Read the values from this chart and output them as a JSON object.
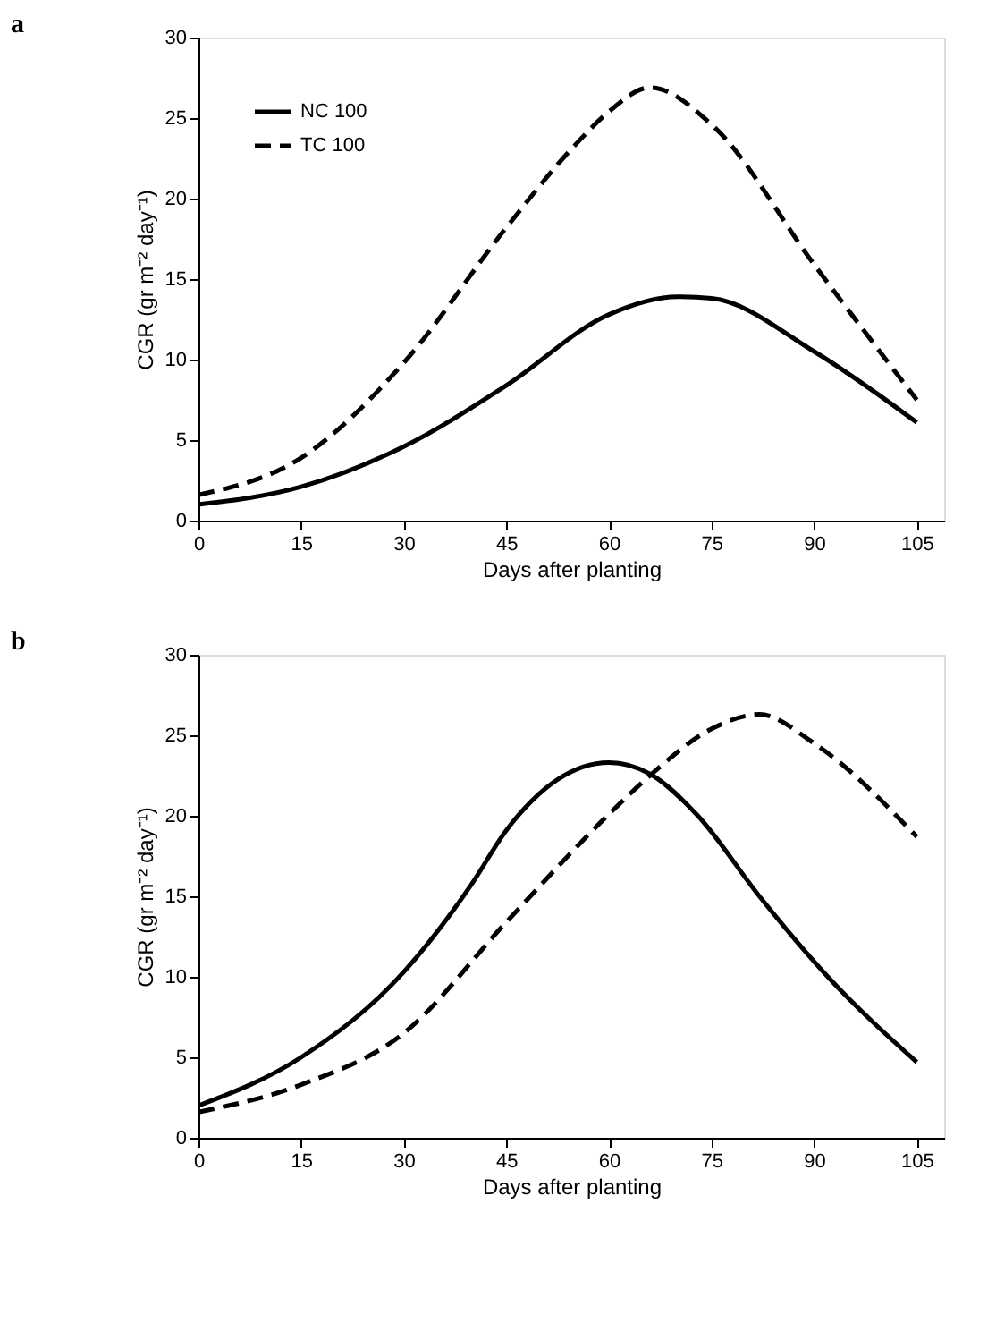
{
  "chart_data": [
    {
      "type": "line",
      "title": "a",
      "xlabel": "Days after planting",
      "ylabel": "CGR (gr m⁻² day⁻¹)",
      "xlim": [
        0,
        109
      ],
      "xticks": [
        0,
        15,
        30,
        45,
        60,
        75,
        90,
        105
      ],
      "ylim": [
        0,
        30
      ],
      "yticks": [
        0,
        5,
        10,
        15,
        20,
        25,
        30
      ],
      "grid": false,
      "legend": "top left",
      "marker": "none",
      "series": [
        {
          "name": "NC 100",
          "color": "#000000",
          "line_style": "solid",
          "x": [
            0,
            15,
            30,
            45,
            60,
            70,
            75,
            90,
            105
          ],
          "values": [
            1.0,
            2.1,
            4.6,
            8.4,
            12.8,
            13.9,
            13.8,
            10.5,
            6.1
          ]
        },
        {
          "name": "TC 100",
          "color": "#000000",
          "line_style": "dashed",
          "x": [
            0,
            15,
            30,
            45,
            55,
            60,
            66,
            75,
            90,
            105
          ],
          "values": [
            1.6,
            3.9,
            9.8,
            18.2,
            23.3,
            25.4,
            26.9,
            24.6,
            15.9,
            7.5
          ]
        }
      ]
    },
    {
      "type": "line",
      "title": "b",
      "xlabel": "Days after planting",
      "ylabel": "CGR (gr m⁻² day⁻¹)",
      "xlim": [
        0,
        109
      ],
      "xticks": [
        0,
        15,
        30,
        45,
        60,
        75,
        90,
        105
      ],
      "ylim": [
        0,
        30
      ],
      "yticks": [
        0,
        5,
        10,
        15,
        20,
        25,
        30
      ],
      "grid": false,
      "legend": "top left",
      "marker": "none",
      "series": [
        {
          "name": "NC 100",
          "color": "#000000",
          "line_style": "solid",
          "x": [
            0,
            15,
            30,
            40,
            45,
            60,
            66,
            73,
            82,
            92,
            105
          ],
          "values": [
            2.0,
            5.0,
            10.3,
            15.8,
            19.1,
            23.3,
            22.6,
            20.0,
            15.0,
            10.0,
            4.7
          ]
        },
        {
          "name": "TC 100",
          "color": "#000000",
          "line_style": "dashed",
          "x": [
            0,
            15,
            30,
            45,
            60,
            66,
            75,
            82,
            90,
            105
          ],
          "values": [
            1.6,
            3.3,
            6.5,
            13.4,
            20.1,
            22.5,
            25.4,
            26.3,
            24.5,
            18.7
          ]
        }
      ]
    }
  ]
}
